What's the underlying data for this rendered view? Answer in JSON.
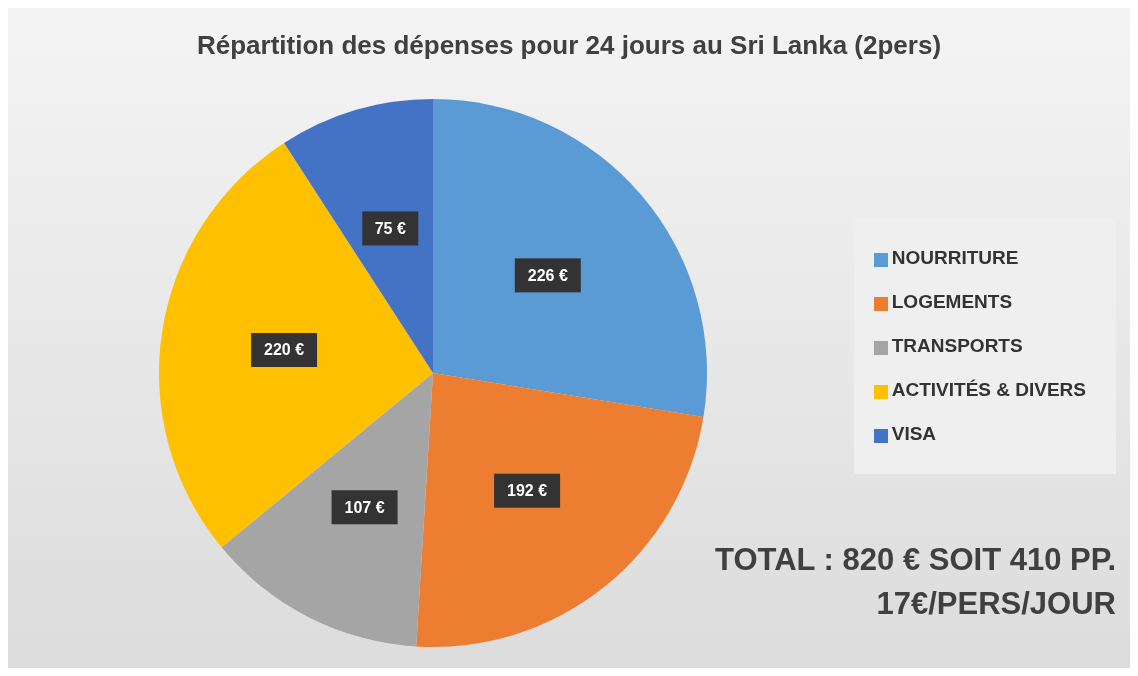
{
  "chart_data": {
    "type": "pie",
    "title": "Répartition des dépenses pour 24 jours au Sri Lanka (2pers)",
    "categories": [
      "NOURRITURE",
      "LOGEMENTS",
      "TRANSPORTS",
      "ACTIVITÉS & DIVERS",
      "VISA"
    ],
    "values": [
      226,
      192,
      107,
      220,
      75
    ],
    "colors": [
      "#5b9bd5",
      "#ed7d31",
      "#a5a5a5",
      "#ffc000",
      "#4472c4"
    ],
    "value_labels": [
      "226 €",
      "192 €",
      "107 €",
      "220 €",
      "75 €"
    ],
    "legend": "right",
    "annotations": [
      "TOTAL : 820 € SOIT 410 PP.",
      "17€/PERS/JOUR"
    ]
  }
}
